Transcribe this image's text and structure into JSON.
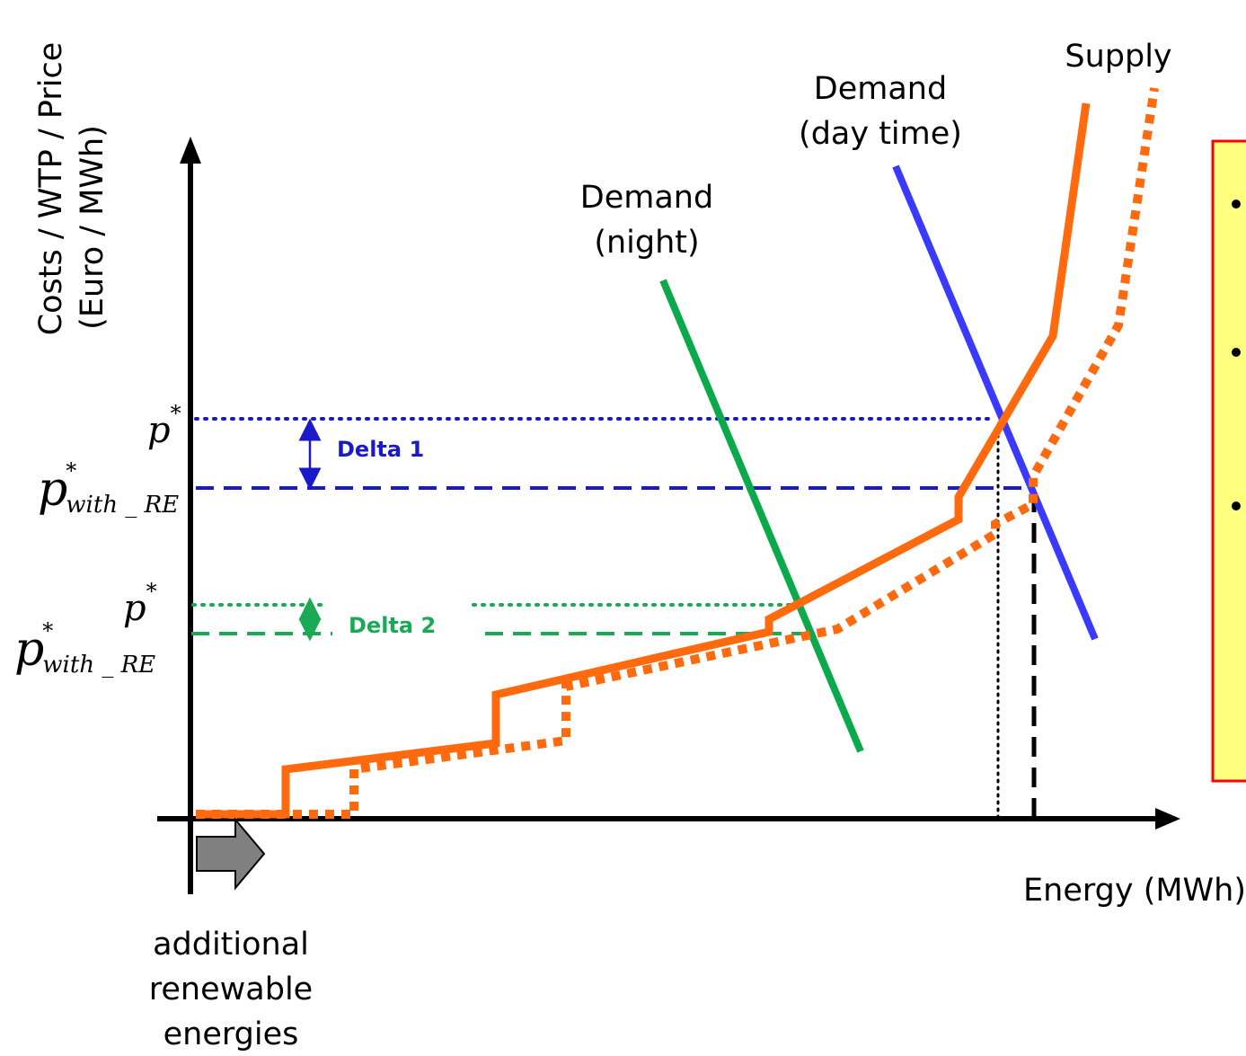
{
  "axes": {
    "y_label_line1": "Costs / WTP / Price",
    "y_label_line2": "(Euro / MWh)",
    "x_label": "Energy (MWh)"
  },
  "curves": {
    "supply_label": "Supply",
    "demand_day_line1": "Demand",
    "demand_day_line2": "(day time)",
    "demand_night_line1": "Demand",
    "demand_night_line2": "(night)"
  },
  "deltas": {
    "delta1": "Delta 1",
    "delta2": "Delta 2"
  },
  "price_labels": {
    "p": "p",
    "star": "*",
    "with_re_sub": "with _ RE"
  },
  "shift_note": {
    "line1": "additional",
    "line2": "renewable",
    "line3": "energies"
  },
  "colors": {
    "supply": "#ff6a0e",
    "demand_day": "#3a3aff",
    "demand_night": "#0aaa4a",
    "delta1": "#1a1ac8",
    "delta2": "#1aaa55",
    "box_fill": "#ffff80",
    "box_border": "#ff0000",
    "arrow_fill": "#808080"
  },
  "icons": {
    "shift_arrow": "right-arrow-icon"
  }
}
